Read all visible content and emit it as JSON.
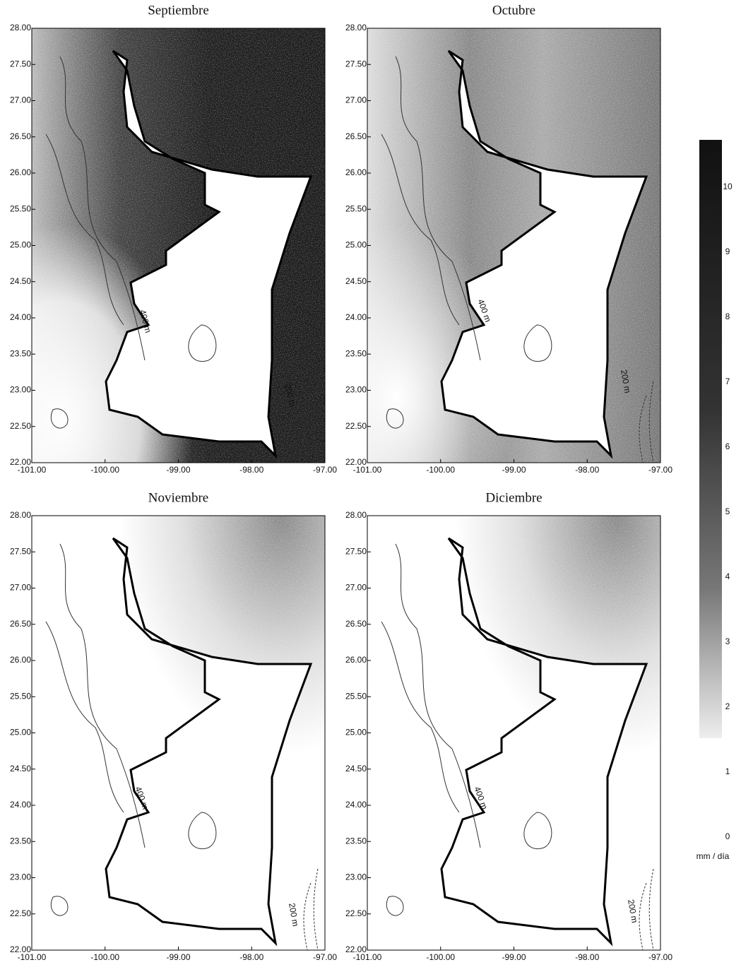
{
  "panels": [
    {
      "title": "Septiembre",
      "contour_labels": [
        "400 m",
        "200 m"
      ]
    },
    {
      "title": "Octubre",
      "contour_labels": [
        "400 m",
        "200 m"
      ]
    },
    {
      "title": "Noviembre",
      "contour_labels": [
        "400 m",
        "200 m"
      ]
    },
    {
      "title": "Diciembre",
      "contour_labels": [
        "400 m",
        "200 m"
      ]
    }
  ],
  "axes": {
    "xlim": [
      -101,
      -97
    ],
    "ylim": [
      22,
      28
    ],
    "xticks": [
      {
        "value": -101,
        "label": "-101.00"
      },
      {
        "value": -100,
        "label": "-100.00"
      },
      {
        "value": -99,
        "label": "-99.00"
      },
      {
        "value": -98,
        "label": "-98.00"
      },
      {
        "value": -97,
        "label": "-97.00"
      }
    ],
    "yticks": [
      {
        "value": 22,
        "label": "22.00"
      },
      {
        "value": 22.5,
        "label": "22.50"
      },
      {
        "value": 23,
        "label": "23.00"
      },
      {
        "value": 23.5,
        "label": "23.50"
      },
      {
        "value": 24,
        "label": "24.00"
      },
      {
        "value": 24.5,
        "label": "24.50"
      },
      {
        "value": 25,
        "label": "25.00"
      },
      {
        "value": 25.5,
        "label": "25.50"
      },
      {
        "value": 26,
        "label": "26.00"
      },
      {
        "value": 26.5,
        "label": "26.50"
      },
      {
        "value": 27,
        "label": "27.00"
      },
      {
        "value": 27.5,
        "label": "27.50"
      },
      {
        "value": 28,
        "label": "28.00"
      }
    ]
  },
  "colorbar": {
    "lim": [
      0,
      10
    ],
    "ticks": [
      0,
      1,
      2,
      3,
      4,
      5,
      6,
      7,
      8,
      9,
      10
    ],
    "label": "mm / día"
  }
}
